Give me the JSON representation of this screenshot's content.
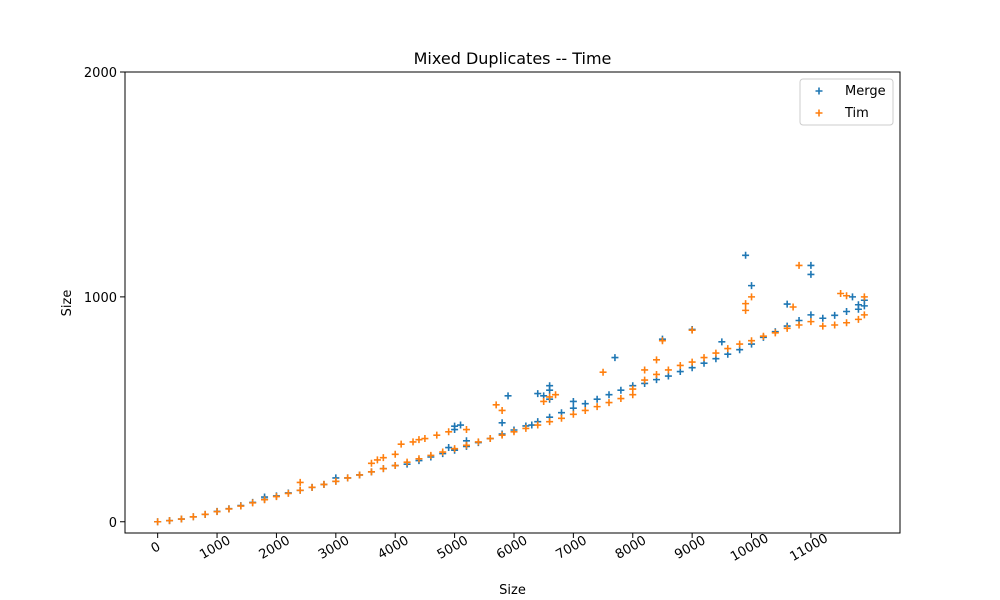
{
  "chart_data": {
    "type": "scatter",
    "title": "Mixed Duplicates -- Time",
    "xlabel": "Size",
    "ylabel": "Size",
    "xlim": [
      -550,
      12500
    ],
    "ylim": [
      -50,
      2000
    ],
    "x_ticks": [
      0,
      1000,
      2000,
      3000,
      4000,
      5000,
      6000,
      7000,
      8000,
      9000,
      10000,
      11000
    ],
    "x_tick_labels": [
      "0",
      "1000",
      "2000",
      "3000",
      "4000",
      "5000",
      "6000",
      "7000",
      "8000",
      "9000",
      "10000",
      "11000"
    ],
    "y_ticks": [
      0,
      1000,
      2000
    ],
    "y_tick_labels": [
      "0",
      "1000",
      "2000"
    ],
    "legend_position": "top-right",
    "grid": false,
    "marker": "plus",
    "series": [
      {
        "name": "Merge",
        "color": "#1f77b4",
        "points": [
          [
            0,
            0
          ],
          [
            200,
            5
          ],
          [
            400,
            12
          ],
          [
            600,
            22
          ],
          [
            800,
            33
          ],
          [
            1000,
            46
          ],
          [
            1200,
            58
          ],
          [
            1400,
            72
          ],
          [
            1600,
            86
          ],
          [
            1800,
            100
          ],
          [
            1800,
            110
          ],
          [
            2000,
            115
          ],
          [
            2200,
            128
          ],
          [
            2400,
            140
          ],
          [
            2600,
            153
          ],
          [
            2800,
            166
          ],
          [
            3000,
            180
          ],
          [
            3000,
            195
          ],
          [
            3200,
            195
          ],
          [
            3400,
            208
          ],
          [
            3600,
            222
          ],
          [
            3800,
            236
          ],
          [
            4000,
            250
          ],
          [
            4200,
            256
          ],
          [
            4400,
            272
          ],
          [
            4600,
            288
          ],
          [
            4800,
            303
          ],
          [
            4900,
            330
          ],
          [
            5000,
            318
          ],
          [
            5000,
            410
          ],
          [
            5000,
            425
          ],
          [
            5100,
            430
          ],
          [
            5200,
            335
          ],
          [
            5200,
            360
          ],
          [
            5400,
            352
          ],
          [
            5600,
            370
          ],
          [
            5800,
            390
          ],
          [
            5800,
            440
          ],
          [
            5900,
            560
          ],
          [
            6000,
            408
          ],
          [
            6200,
            426
          ],
          [
            6300,
            430
          ],
          [
            6400,
            445
          ],
          [
            6400,
            570
          ],
          [
            6500,
            560
          ],
          [
            6600,
            465
          ],
          [
            6600,
            545
          ],
          [
            6600,
            585
          ],
          [
            6600,
            605
          ],
          [
            6800,
            485
          ],
          [
            7000,
            505
          ],
          [
            7000,
            535
          ],
          [
            7200,
            525
          ],
          [
            7400,
            545
          ],
          [
            7600,
            565
          ],
          [
            7700,
            730
          ],
          [
            7800,
            585
          ],
          [
            8000,
            605
          ],
          [
            8200,
            615
          ],
          [
            8400,
            632
          ],
          [
            8500,
            812
          ],
          [
            8600,
            648
          ],
          [
            8800,
            668
          ],
          [
            9000,
            685
          ],
          [
            9000,
            855
          ],
          [
            9200,
            705
          ],
          [
            9400,
            725
          ],
          [
            9500,
            800
          ],
          [
            9600,
            745
          ],
          [
            9800,
            765
          ],
          [
            9900,
            1185
          ],
          [
            10000,
            790
          ],
          [
            10000,
            1050
          ],
          [
            10200,
            820
          ],
          [
            10400,
            845
          ],
          [
            10600,
            968
          ],
          [
            10600,
            870
          ],
          [
            10800,
            895
          ],
          [
            11000,
            920
          ],
          [
            11000,
            1100
          ],
          [
            11000,
            1140
          ],
          [
            11200,
            905
          ],
          [
            11400,
            918
          ],
          [
            11600,
            935
          ],
          [
            11700,
            1000
          ],
          [
            11800,
            945
          ],
          [
            11800,
            965
          ],
          [
            11900,
            960
          ],
          [
            11900,
            985
          ]
        ]
      },
      {
        "name": "Tim",
        "color": "#ff7f0e",
        "points": [
          [
            0,
            0
          ],
          [
            200,
            5
          ],
          [
            400,
            12
          ],
          [
            600,
            22
          ],
          [
            800,
            33
          ],
          [
            1000,
            45
          ],
          [
            1200,
            57
          ],
          [
            1400,
            70
          ],
          [
            1600,
            84
          ],
          [
            1800,
            98
          ],
          [
            2000,
            112
          ],
          [
            2200,
            126
          ],
          [
            2400,
            140
          ],
          [
            2400,
            175
          ],
          [
            2600,
            153
          ],
          [
            2800,
            166
          ],
          [
            3000,
            180
          ],
          [
            3200,
            195
          ],
          [
            3400,
            208
          ],
          [
            3600,
            222
          ],
          [
            3600,
            260
          ],
          [
            3700,
            275
          ],
          [
            3800,
            236
          ],
          [
            3800,
            285
          ],
          [
            4000,
            250
          ],
          [
            4000,
            300
          ],
          [
            4100,
            345
          ],
          [
            4200,
            265
          ],
          [
            4300,
            355
          ],
          [
            4400,
            280
          ],
          [
            4400,
            365
          ],
          [
            4500,
            370
          ],
          [
            4600,
            295
          ],
          [
            4700,
            385
          ],
          [
            4800,
            310
          ],
          [
            4900,
            400
          ],
          [
            5000,
            325
          ],
          [
            5200,
            340
          ],
          [
            5200,
            410
          ],
          [
            5400,
            355
          ],
          [
            5600,
            370
          ],
          [
            5700,
            520
          ],
          [
            5800,
            385
          ],
          [
            5800,
            495
          ],
          [
            6000,
            400
          ],
          [
            6200,
            415
          ],
          [
            6400,
            430
          ],
          [
            6500,
            535
          ],
          [
            6600,
            445
          ],
          [
            6600,
            555
          ],
          [
            6700,
            565
          ],
          [
            6800,
            460
          ],
          [
            7000,
            478
          ],
          [
            7200,
            495
          ],
          [
            7400,
            512
          ],
          [
            7500,
            665
          ],
          [
            7600,
            530
          ],
          [
            7800,
            548
          ],
          [
            8000,
            565
          ],
          [
            8000,
            590
          ],
          [
            8200,
            630
          ],
          [
            8200,
            675
          ],
          [
            8400,
            655
          ],
          [
            8400,
            720
          ],
          [
            8500,
            805
          ],
          [
            8600,
            675
          ],
          [
            8800,
            695
          ],
          [
            9000,
            710
          ],
          [
            9000,
            852
          ],
          [
            9200,
            730
          ],
          [
            9400,
            750
          ],
          [
            9600,
            770
          ],
          [
            9800,
            790
          ],
          [
            9900,
            970
          ],
          [
            9900,
            940
          ],
          [
            10000,
            1000
          ],
          [
            10000,
            805
          ],
          [
            10200,
            825
          ],
          [
            10400,
            840
          ],
          [
            10600,
            860
          ],
          [
            10700,
            955
          ],
          [
            10800,
            1140
          ],
          [
            10800,
            875
          ],
          [
            11000,
            890
          ],
          [
            11200,
            870
          ],
          [
            11400,
            875
          ],
          [
            11500,
            1015
          ],
          [
            11600,
            885
          ],
          [
            11600,
            1005
          ],
          [
            11800,
            900
          ],
          [
            11900,
            920
          ],
          [
            11900,
            1000
          ]
        ]
      }
    ]
  }
}
